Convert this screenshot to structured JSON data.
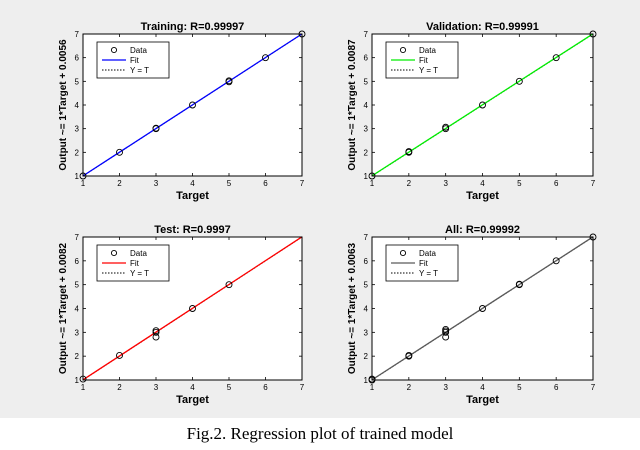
{
  "caption": "Fig.2. Regression plot of trained model",
  "chart_data": [
    {
      "type": "scatter",
      "title": "Training: R=0.99997",
      "xlabel": "Target",
      "ylabel": "Output ~= 1*Target + 0.0056",
      "xlim": [
        1,
        7
      ],
      "ylim": [
        1,
        7
      ],
      "xticks": [
        "1",
        "2",
        "3",
        "4",
        "5",
        "6",
        "7"
      ],
      "yticks": [
        "1",
        "2",
        "3",
        "4",
        "5",
        "6",
        "7"
      ],
      "grid": false,
      "legend_position": "top-left",
      "fit_color": "#0000ff",
      "legend": [
        "Data",
        "Fit",
        "Y = T"
      ],
      "fit": {
        "slope": 1,
        "intercept": 0.0056
      },
      "points": [
        [
          1,
          1
        ],
        [
          2,
          2
        ],
        [
          3,
          3
        ],
        [
          3,
          3.02
        ],
        [
          4,
          4
        ],
        [
          5,
          4.98
        ],
        [
          5,
          5.02
        ],
        [
          6,
          6
        ],
        [
          7,
          7
        ]
      ]
    },
    {
      "type": "scatter",
      "title": "Validation: R=0.99991",
      "xlabel": "Target",
      "ylabel": "Output ~= 1*Target + 0.0087",
      "xlim": [
        1,
        7
      ],
      "ylim": [
        1,
        7
      ],
      "xticks": [
        "1",
        "2",
        "3",
        "4",
        "5",
        "6",
        "7"
      ],
      "yticks": [
        "1",
        "2",
        "3",
        "4",
        "5",
        "6",
        "7"
      ],
      "grid": false,
      "legend_position": "top-left",
      "fit_color": "#00ee00",
      "legend": [
        "Data",
        "Fit",
        "Y = T"
      ],
      "fit": {
        "slope": 1,
        "intercept": 0.0087
      },
      "points": [
        [
          1,
          1
        ],
        [
          2,
          2
        ],
        [
          2,
          2.03
        ],
        [
          3,
          3
        ],
        [
          3,
          3.06
        ],
        [
          4,
          4
        ],
        [
          5,
          5
        ],
        [
          6,
          6
        ],
        [
          7,
          7
        ]
      ]
    },
    {
      "type": "scatter",
      "title": "Test: R=0.9997",
      "xlabel": "Target",
      "ylabel": "Output ~= 1*Target + 0.0082",
      "xlim": [
        1,
        7
      ],
      "ylim": [
        1,
        7
      ],
      "xticks": [
        "1",
        "2",
        "3",
        "4",
        "5",
        "6",
        "7"
      ],
      "yticks": [
        "1",
        "2",
        "3",
        "4",
        "5",
        "6",
        "7"
      ],
      "grid": false,
      "legend_position": "top-left",
      "fit_color": "#ff0000",
      "legend": [
        "Data",
        "Fit",
        "Y = T"
      ],
      "fit": {
        "slope": 1,
        "intercept": 0.0082
      },
      "points": [
        [
          1,
          1.04
        ],
        [
          2,
          2.03
        ],
        [
          3,
          2.8
        ],
        [
          3,
          3
        ],
        [
          3,
          3.07
        ],
        [
          4,
          4
        ],
        [
          5,
          5
        ]
      ]
    },
    {
      "type": "scatter",
      "title": "All: R=0.99992",
      "xlabel": "Target",
      "ylabel": "Output ~= 1*Target + 0.0063",
      "xlim": [
        1,
        7
      ],
      "ylim": [
        1,
        7
      ],
      "xticks": [
        "1",
        "2",
        "3",
        "4",
        "5",
        "6",
        "7"
      ],
      "yticks": [
        "1",
        "2",
        "3",
        "4",
        "5",
        "6",
        "7"
      ],
      "grid": false,
      "legend_position": "top-left",
      "fit_color": "#5a5a5a",
      "legend": [
        "Data",
        "Fit",
        "Y = T"
      ],
      "fit": {
        "slope": 1,
        "intercept": 0.0063
      },
      "points": [
        [
          1,
          1
        ],
        [
          1,
          1.04
        ],
        [
          2,
          2
        ],
        [
          2,
          2.03
        ],
        [
          3,
          2.8
        ],
        [
          3,
          3
        ],
        [
          3,
          3.06
        ],
        [
          3,
          3.12
        ],
        [
          4,
          4
        ],
        [
          5,
          5
        ],
        [
          5,
          5.02
        ],
        [
          6,
          6
        ],
        [
          7,
          7
        ]
      ]
    }
  ]
}
